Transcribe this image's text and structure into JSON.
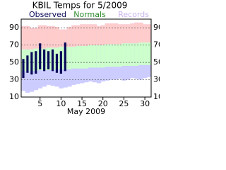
{
  "chart_data": {
    "type": "range",
    "title": "KBIL Temps for 5/2009",
    "x_label": "May 2009",
    "x": [
      1,
      2,
      3,
      4,
      5,
      6,
      7,
      8,
      9,
      10,
      11,
      12,
      13,
      14,
      15,
      16,
      17,
      18,
      19,
      20,
      21,
      22,
      23,
      24,
      25,
      26,
      27,
      28,
      29,
      30,
      31
    ],
    "xlim": [
      0.5,
      31.5
    ],
    "xticks": [
      5,
      10,
      15,
      20,
      25,
      30
    ],
    "ylim": [
      10,
      100
    ],
    "yticks": [
      10,
      30,
      50,
      70,
      90
    ],
    "grid": true,
    "series": [
      {
        "name": "Records",
        "color": "#c8b4f0",
        "high_color": "#ffcccc",
        "low_color": "#ccccff",
        "high": [
          92,
          92,
          90,
          90,
          93,
          93,
          92,
          92,
          91,
          88,
          88,
          91,
          93,
          93,
          94,
          94,
          94,
          94,
          92,
          93,
          95,
          95,
          95,
          94,
          94,
          94,
          95,
          96,
          96,
          94,
          94
        ],
        "low": [
          17,
          15,
          16,
          18,
          20,
          22,
          24,
          23,
          22,
          20,
          21,
          22,
          24,
          25,
          26,
          27,
          28,
          27,
          26,
          28,
          29,
          30,
          30,
          31,
          29,
          30,
          32,
          31,
          30,
          32,
          33
        ]
      },
      {
        "name": "Normals",
        "color": "#2e8b2e",
        "fill": "#ccffcc",
        "high": [
          65,
          65,
          65,
          66,
          66,
          66,
          67,
          67,
          67,
          68,
          68,
          68,
          68,
          69,
          69,
          69,
          70,
          70,
          70,
          70,
          71,
          71,
          71,
          71,
          72,
          72,
          72,
          72,
          73,
          73,
          73
        ],
        "low": [
          40,
          40,
          40,
          40,
          41,
          41,
          41,
          41,
          42,
          42,
          42,
          42,
          43,
          43,
          43,
          43,
          44,
          44,
          44,
          44,
          45,
          45,
          45,
          45,
          46,
          46,
          46,
          46,
          47,
          47,
          47
        ]
      },
      {
        "name": "Observed",
        "color": "#0a0a5a",
        "high": [
          54,
          58,
          62,
          63,
          72,
          65,
          63,
          65,
          60,
          63,
          73,
          null,
          null,
          null,
          null,
          null,
          null,
          null,
          null,
          null,
          null,
          null,
          null,
          null,
          null,
          null,
          null,
          null,
          null,
          null,
          null
        ],
        "low": [
          32,
          38,
          36,
          37,
          42,
          40,
          42,
          40,
          38,
          37,
          40,
          null,
          null,
          null,
          null,
          null,
          null,
          null,
          null,
          null,
          null,
          null,
          null,
          null,
          null,
          null,
          null,
          null,
          null,
          null,
          null
        ]
      }
    ]
  }
}
